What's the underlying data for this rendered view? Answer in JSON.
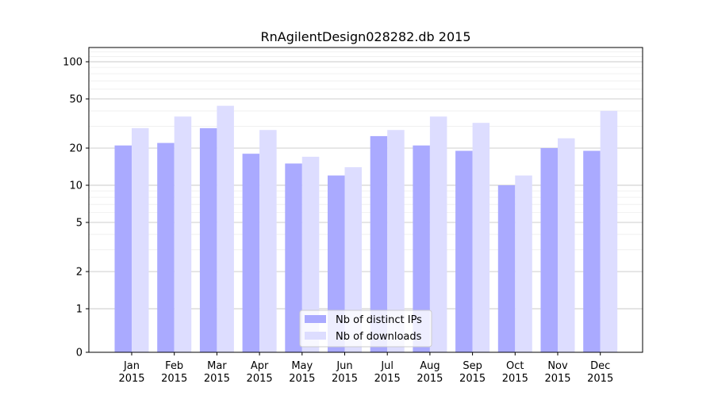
{
  "chart_data": {
    "type": "bar",
    "title": "RnAgilentDesign028282.db 2015",
    "xlabel": "",
    "ylabel": "",
    "yscale": "log",
    "yticks": [
      {
        "value": 0,
        "label": "0"
      },
      {
        "value": 1,
        "label": "1"
      },
      {
        "value": 2,
        "label": "2"
      },
      {
        "value": 5,
        "label": "5"
      },
      {
        "value": 10,
        "label": "10"
      },
      {
        "value": 20,
        "label": "20"
      },
      {
        "value": 50,
        "label": "50"
      },
      {
        "value": 100,
        "label": "100"
      }
    ],
    "ylim": [
      0,
      120
    ],
    "grid": true,
    "legend_position": "bottom-center",
    "categories": [
      "Jan 2015",
      "Feb 2015",
      "Mar 2015",
      "Apr 2015",
      "May 2015",
      "Jun 2015",
      "Jul 2015",
      "Aug 2015",
      "Sep 2015",
      "Oct 2015",
      "Nov 2015",
      "Dec 2015"
    ],
    "category_lines": [
      [
        "Jan",
        "2015"
      ],
      [
        "Feb",
        "2015"
      ],
      [
        "Mar",
        "2015"
      ],
      [
        "Apr",
        "2015"
      ],
      [
        "May",
        "2015"
      ],
      [
        "Jun",
        "2015"
      ],
      [
        "Jul",
        "2015"
      ],
      [
        "Aug",
        "2015"
      ],
      [
        "Sep",
        "2015"
      ],
      [
        "Oct",
        "2015"
      ],
      [
        "Nov",
        "2015"
      ],
      [
        "Dec",
        "2015"
      ]
    ],
    "series": [
      {
        "name": "Nb of distinct IPs",
        "color": "#aaaaff",
        "values": [
          21,
          22,
          29,
          18,
          15,
          12,
          25,
          21,
          19,
          10,
          20,
          19
        ]
      },
      {
        "name": "Nb of downloads",
        "color": "#ddddff",
        "values": [
          29,
          36,
          44,
          28,
          17,
          14,
          28,
          36,
          32,
          12,
          24,
          40
        ]
      }
    ]
  }
}
